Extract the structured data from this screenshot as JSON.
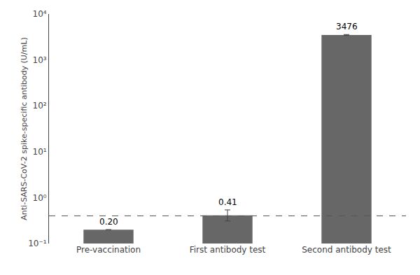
{
  "chart_data": {
    "type": "bar",
    "categories": [
      "Pre-vaccination",
      "First antibody test",
      "Second antibody test"
    ],
    "values": [
      0.2,
      0.41,
      3476
    ],
    "errors_upper": [
      0.0,
      0.13,
      100
    ],
    "errors_lower": [
      0.0,
      0.1,
      70
    ],
    "color": "#676767",
    "ylabel": "Anti-SARS-CoV-2 spike-specific antibody (U/mL)",
    "log": "y",
    "ylim": [
      0.1,
      10000
    ],
    "yticks": [
      {
        "value": 0.1,
        "label": "10⁻¹"
      },
      {
        "value": 1,
        "label": "10⁰"
      },
      {
        "value": 10,
        "label": "10¹"
      },
      {
        "value": 100,
        "label": "10²"
      },
      {
        "value": 1000,
        "label": "10³"
      },
      {
        "value": 10000,
        "label": "10⁴"
      }
    ],
    "dashed_line": 0.4,
    "data_labels": true,
    "value_labels": [
      "0.20",
      "0.41",
      "3476"
    ],
    "grid": false
  }
}
